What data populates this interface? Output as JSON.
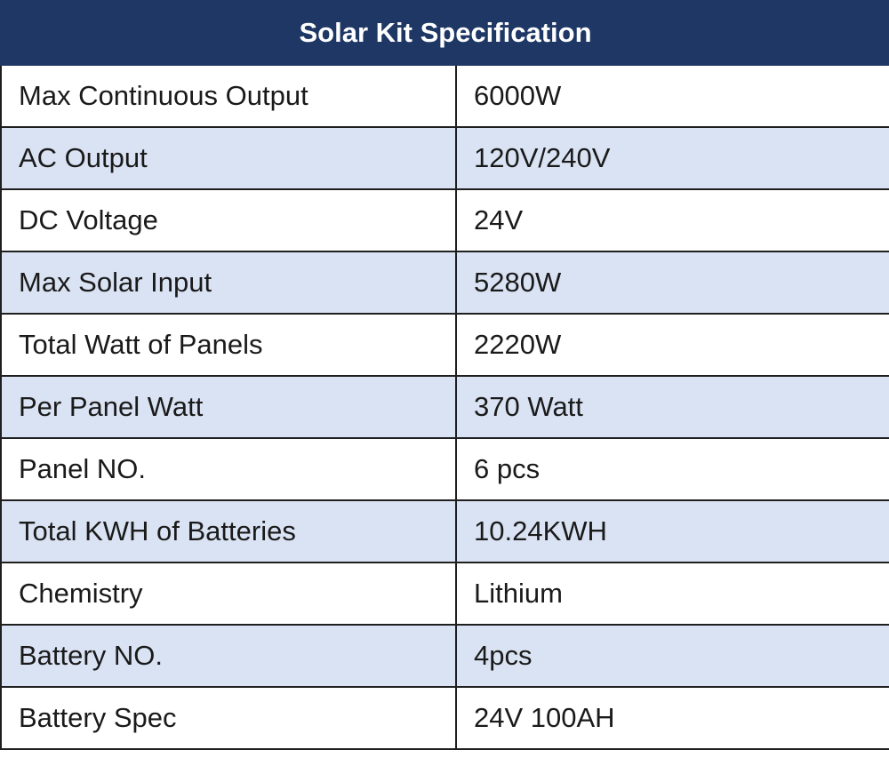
{
  "table": {
    "title": "Solar Kit Specification",
    "rows": [
      {
        "label": "Max Continuous Output",
        "value": "6000W"
      },
      {
        "label": "AC Output",
        "value": "120V/240V"
      },
      {
        "label": "DC Voltage",
        "value": "24V"
      },
      {
        "label": "Max Solar Input",
        "value": "5280W"
      },
      {
        "label": "Total Watt of Panels",
        "value": "2220W"
      },
      {
        "label": "Per Panel Watt",
        "value": "370 Watt"
      },
      {
        "label": "Panel NO.",
        "value": "6 pcs"
      },
      {
        "label": "Total KWH of Batteries",
        "value": "10.24KWH"
      },
      {
        "label": "Chemistry",
        "value": "Lithium"
      },
      {
        "label": "Battery NO.",
        "value": "4pcs"
      },
      {
        "label": "Battery Spec",
        "value": "24V 100AH"
      }
    ]
  },
  "colors": {
    "header_bg": "#1e3765",
    "header_text": "#ffffff",
    "alt_row_bg": "#dae3f3",
    "row_bg": "#ffffff",
    "border": "#1f1f1f"
  }
}
